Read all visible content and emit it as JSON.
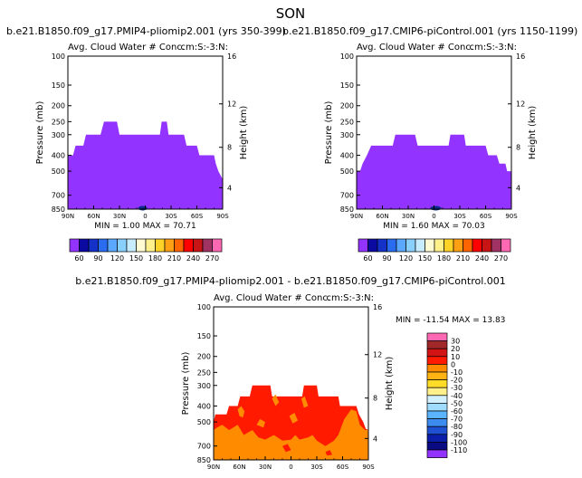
{
  "season": "SON",
  "colors": {
    "background": "#ffffff",
    "text": "#000000",
    "fill_panels": "#9333ff",
    "fill_red": "#ff1a00",
    "fill_orange": "#ff8c00",
    "fill_blue": "#0a2a8c"
  },
  "chart_data": [
    {
      "type": "contour",
      "title": "b.e21.B1850.f09_g17.PMIP4-pliomip2.001 (yrs 350-399)",
      "subtitle": "Avg. Cloud Water # Conc.",
      "units": "cm-3",
      "units_label": "cm:S:-3:N:",
      "ylabel": "Pressure (mb)",
      "ylabel_right": "Height (km)",
      "x_ticks": [
        "90N",
        "60N",
        "30N",
        "0",
        "30S",
        "60S",
        "90S"
      ],
      "y_ticks": [
        "100",
        "150",
        "200",
        "250",
        "300",
        "400",
        "500",
        "700",
        "850"
      ],
      "height_ticks": [
        "16",
        "12",
        "8",
        "4"
      ],
      "min_max": "MIN = 1.00  MAX = 70.71",
      "cloud_top_profile": [
        {
          "lat": 90,
          "p": 400
        },
        {
          "lat": 84,
          "p": 400
        },
        {
          "lat": 81,
          "p": 350
        },
        {
          "lat": 72,
          "p": 350
        },
        {
          "lat": 69,
          "p": 300
        },
        {
          "lat": 52,
          "p": 300
        },
        {
          "lat": 48,
          "p": 250
        },
        {
          "lat": 33,
          "p": 250
        },
        {
          "lat": 30,
          "p": 300
        },
        {
          "lat": -17,
          "p": 300
        },
        {
          "lat": -19,
          "p": 250
        },
        {
          "lat": -25,
          "p": 250
        },
        {
          "lat": -27,
          "p": 300
        },
        {
          "lat": -45,
          "p": 300
        },
        {
          "lat": -48,
          "p": 350
        },
        {
          "lat": -60,
          "p": 350
        },
        {
          "lat": -63,
          "p": 400
        },
        {
          "lat": -80,
          "p": 400
        },
        {
          "lat": -82,
          "p": 450
        },
        {
          "lat": -85,
          "p": 500
        },
        {
          "lat": -90,
          "p": 560
        }
      ],
      "colorbar": {
        "labels": [
          "60",
          "90",
          "120",
          "150",
          "180",
          "210",
          "240",
          "270"
        ],
        "colors": [
          "#9333ff",
          "#0a0aa0",
          "#1432c8",
          "#2a6cf0",
          "#5aa8ff",
          "#8ad0ff",
          "#c8ecff",
          "#fffad2",
          "#fff08c",
          "#ffd228",
          "#ffa014",
          "#ff6400",
          "#ff0000",
          "#c81414",
          "#a03264",
          "#ff69b4"
        ]
      }
    },
    {
      "type": "contour",
      "title": "b.e21.B1850.f09_g17.CMIP6-piControl.001 (yrs 1150-1199)",
      "subtitle": "Avg. Cloud Water # Conc.",
      "units": "cm-3",
      "units_label": "cm:S:-3:N:",
      "ylabel": "Pressure (mb)",
      "ylabel_right": "Height (km)",
      "x_ticks": [
        "90N",
        "60N",
        "30N",
        "0",
        "30S",
        "60S",
        "90S"
      ],
      "y_ticks": [
        "100",
        "150",
        "200",
        "250",
        "300",
        "400",
        "500",
        "700",
        "850"
      ],
      "height_ticks": [
        "16",
        "12",
        "8",
        "4"
      ],
      "min_max": "MIN = 1.60  MAX = 70.03",
      "cloud_top_profile": [
        {
          "lat": 90,
          "p": 500
        },
        {
          "lat": 86,
          "p": 500
        },
        {
          "lat": 83,
          "p": 450
        },
        {
          "lat": 78,
          "p": 400
        },
        {
          "lat": 73,
          "p": 350
        },
        {
          "lat": 48,
          "p": 350
        },
        {
          "lat": 45,
          "p": 300
        },
        {
          "lat": 22,
          "p": 300
        },
        {
          "lat": 19,
          "p": 350
        },
        {
          "lat": -17,
          "p": 350
        },
        {
          "lat": -19,
          "p": 300
        },
        {
          "lat": -35,
          "p": 300
        },
        {
          "lat": -37,
          "p": 350
        },
        {
          "lat": -60,
          "p": 350
        },
        {
          "lat": -63,
          "p": 400
        },
        {
          "lat": -73,
          "p": 400
        },
        {
          "lat": -76,
          "p": 450
        },
        {
          "lat": -83,
          "p": 450
        },
        {
          "lat": -85,
          "p": 500
        },
        {
          "lat": -90,
          "p": 500
        }
      ],
      "colorbar": {
        "labels": [
          "60",
          "90",
          "120",
          "150",
          "180",
          "210",
          "240",
          "270"
        ],
        "colors": [
          "#9333ff",
          "#0a0aa0",
          "#1432c8",
          "#2a6cf0",
          "#5aa8ff",
          "#8ad0ff",
          "#c8ecff",
          "#fffad2",
          "#fff08c",
          "#ffd228",
          "#ffa014",
          "#ff6400",
          "#ff0000",
          "#c81414",
          "#a03264",
          "#ff69b4"
        ]
      }
    },
    {
      "type": "contour",
      "title": "b.e21.B1850.f09_g17.PMIP4-pliomip2.001 - b.e21.B1850.f09_g17.CMIP6-piControl.001",
      "subtitle": "Avg. Cloud Water # Conc.",
      "units": "cm-3",
      "units_label": "cm:S:-3:N:",
      "ylabel": "Pressure (mb)",
      "ylabel_right": "Height (km)",
      "x_ticks": [
        "90N",
        "60N",
        "30N",
        "0",
        "30S",
        "60S",
        "90S"
      ],
      "y_ticks": [
        "100",
        "150",
        "200",
        "250",
        "300",
        "400",
        "500",
        "700",
        "850"
      ],
      "height_ticks": [
        "16",
        "12",
        "8",
        "4"
      ],
      "min_max": "MIN = -11.54   MAX =  13.83",
      "cloud_top_profile": [
        {
          "lat": 90,
          "p": 500
        },
        {
          "lat": 88,
          "p": 450
        },
        {
          "lat": 75,
          "p": 450
        },
        {
          "lat": 72,
          "p": 400
        },
        {
          "lat": 62,
          "p": 400
        },
        {
          "lat": 59,
          "p": 350
        },
        {
          "lat": 48,
          "p": 350
        },
        {
          "lat": 45,
          "p": 300
        },
        {
          "lat": 24,
          "p": 300
        },
        {
          "lat": 22,
          "p": 350
        },
        {
          "lat": -13,
          "p": 350
        },
        {
          "lat": -15,
          "p": 300
        },
        {
          "lat": -30,
          "p": 300
        },
        {
          "lat": -32,
          "p": 350
        },
        {
          "lat": -55,
          "p": 350
        },
        {
          "lat": -57,
          "p": 400
        },
        {
          "lat": -76,
          "p": 400
        },
        {
          "lat": -79,
          "p": 450
        },
        {
          "lat": -84,
          "p": 500
        },
        {
          "lat": -87,
          "p": 550
        },
        {
          "lat": -90,
          "p": 560
        }
      ],
      "colorbar": {
        "labels": [
          "30",
          "20",
          "10",
          "0",
          "-10",
          "-20",
          "-30",
          "-40",
          "-50",
          "-60",
          "-70",
          "-80",
          "-90",
          "-100",
          "-110"
        ],
        "colors": [
          "#ff69b4",
          "#a02828",
          "#d21414",
          "#ff1a00",
          "#ff8c00",
          "#ffb414",
          "#ffdc28",
          "#fff08c",
          "#d2f0ff",
          "#a0dcff",
          "#5ab4ff",
          "#3c8cf0",
          "#1e50d2",
          "#0a1eaa",
          "#0a0a82",
          "#9333ff"
        ]
      }
    }
  ]
}
